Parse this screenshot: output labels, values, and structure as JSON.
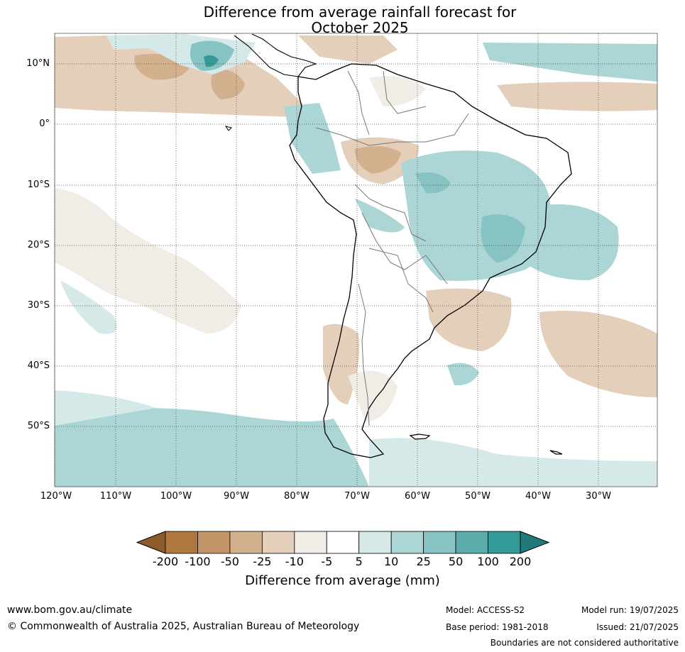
{
  "title": {
    "line1": "Difference from average rainfall forecast for",
    "line2": "October 2025"
  },
  "map": {
    "lat_labels": [
      "10°N",
      "0°",
      "10°S",
      "20°S",
      "30°S",
      "40°S",
      "50°S"
    ],
    "lon_labels": [
      "120°W",
      "110°W",
      "100°W",
      "90°W",
      "80°W",
      "70°W",
      "60°W",
      "50°W",
      "40°W",
      "30°W"
    ],
    "lat_values": [
      10,
      0,
      -10,
      -20,
      -30,
      -40,
      -50
    ],
    "lon_values": [
      -120,
      -110,
      -100,
      -90,
      -80,
      -70,
      -60,
      -50,
      -40,
      -30
    ],
    "extent": {
      "lon_min": -120,
      "lon_max": -20,
      "lat_min": -60,
      "lat_max": 15
    }
  },
  "colorbar": {
    "ticks": [
      "-200",
      "-100",
      "-50",
      "-25",
      "-10",
      "-5",
      "5",
      "10",
      "25",
      "50",
      "100",
      "200"
    ],
    "colors": [
      "#8f5a2a",
      "#b07840",
      "#c29468",
      "#d3b08e",
      "#e4cfbb",
      "#f2ece6",
      "#ffffff",
      "#d5e9e8",
      "#abd6d5",
      "#86c3c2",
      "#5bacab",
      "#339a98",
      "#1f7a79"
    ],
    "label": "Difference from average (mm)"
  },
  "footer": {
    "url": "www.bom.gov.au/climate",
    "copyright": "© Commonwealth of Australia 2025, Australian Bureau of Meteorology",
    "model": "Model: ACCESS-S2",
    "base_period": "Base period: 1981-2018",
    "model_run": "Model run: 19/07/2025",
    "issued": "Issued: 21/07/2025",
    "boundaries": "Boundaries are not considered authoritative"
  }
}
